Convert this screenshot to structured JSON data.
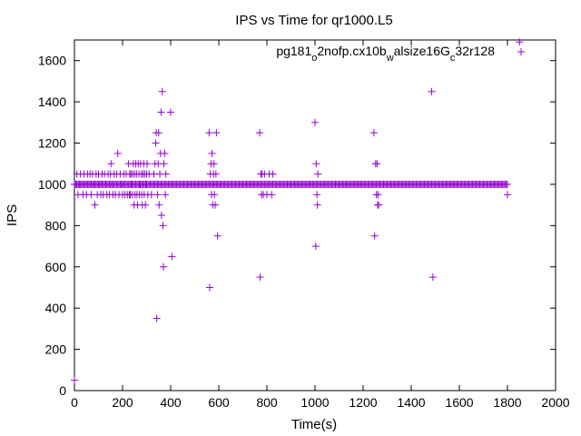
{
  "chart_data": {
    "type": "scatter",
    "title": "IPS vs Time for qr1000.L5",
    "xlabel": "Time(s)",
    "ylabel": "IPS",
    "xlim": [
      0,
      2000
    ],
    "ylim": [
      0,
      1700
    ],
    "xticks": [
      0,
      200,
      400,
      600,
      800,
      1000,
      1200,
      1400,
      1600,
      1800,
      2000
    ],
    "yticks": [
      0,
      200,
      400,
      600,
      800,
      1000,
      1200,
      1400,
      1600
    ],
    "grid": false,
    "legend_position": "top-right",
    "series": [
      {
        "name": "pg181_o2nofp.cx10b_walsize16G_c32r128",
        "name_parts": [
          {
            "text": "pg181",
            "sub": false
          },
          {
            "text": "o",
            "sub": true
          },
          {
            "text": "2nofp.cx10b",
            "sub": false
          },
          {
            "text": "w",
            "sub": true
          },
          {
            "text": "alsize16G",
            "sub": false
          },
          {
            "text": "c",
            "sub": true
          },
          {
            "text": "32r128",
            "sub": false
          }
        ],
        "color": "#9400d3",
        "marker": "plus",
        "dense_band": {
          "y": 1000,
          "x_start": 0,
          "x_end": 1800,
          "step": 5
        },
        "points": [
          [
            0,
            50
          ],
          [
            5,
            1000
          ],
          [
            10,
            1050
          ],
          [
            15,
            950
          ],
          [
            20,
            1000
          ],
          [
            25,
            1050
          ],
          [
            30,
            1000
          ],
          [
            35,
            950
          ],
          [
            40,
            1050
          ],
          [
            45,
            1000
          ],
          [
            50,
            950
          ],
          [
            55,
            1050
          ],
          [
            60,
            1000
          ],
          [
            65,
            1050
          ],
          [
            70,
            950
          ],
          [
            75,
            1050
          ],
          [
            80,
            1000
          ],
          [
            85,
            900
          ],
          [
            90,
            1050
          ],
          [
            95,
            950
          ],
          [
            100,
            1050
          ],
          [
            105,
            1000
          ],
          [
            110,
            950
          ],
          [
            115,
            1050
          ],
          [
            120,
            950
          ],
          [
            125,
            1050
          ],
          [
            130,
            1000
          ],
          [
            135,
            950
          ],
          [
            140,
            1050
          ],
          [
            145,
            950
          ],
          [
            150,
            1050
          ],
          [
            152,
            1100
          ],
          [
            155,
            1000
          ],
          [
            160,
            950
          ],
          [
            165,
            1050
          ],
          [
            170,
            950
          ],
          [
            175,
            1050
          ],
          [
            180,
            1150
          ],
          [
            185,
            950
          ],
          [
            190,
            1050
          ],
          [
            195,
            1000
          ],
          [
            200,
            950
          ],
          [
            205,
            1050
          ],
          [
            210,
            950
          ],
          [
            215,
            1050
          ],
          [
            220,
            950
          ],
          [
            225,
            1100
          ],
          [
            228,
            950
          ],
          [
            230,
            1050
          ],
          [
            232,
            950
          ],
          [
            235,
            1050
          ],
          [
            238,
            1000
          ],
          [
            240,
            950
          ],
          [
            242,
            1050
          ],
          [
            245,
            1100
          ],
          [
            248,
            900
          ],
          [
            250,
            1050
          ],
          [
            252,
            950
          ],
          [
            255,
            1100
          ],
          [
            258,
            1050
          ],
          [
            260,
            950
          ],
          [
            262,
            900
          ],
          [
            265,
            1100
          ],
          [
            268,
            1050
          ],
          [
            270,
            950
          ],
          [
            272,
            1000
          ],
          [
            275,
            1100
          ],
          [
            278,
            1050
          ],
          [
            280,
            950
          ],
          [
            282,
            900
          ],
          [
            285,
            1050
          ],
          [
            288,
            1100
          ],
          [
            290,
            950
          ],
          [
            292,
            1050
          ],
          [
            295,
            900
          ],
          [
            298,
            1000
          ],
          [
            300,
            1050
          ],
          [
            302,
            1100
          ],
          [
            305,
            950
          ],
          [
            310,
            1050
          ],
          [
            320,
            950
          ],
          [
            330,
            1050
          ],
          [
            335,
            1100
          ],
          [
            338,
            1200
          ],
          [
            340,
            1250
          ],
          [
            342,
            350
          ],
          [
            345,
            950
          ],
          [
            348,
            1100
          ],
          [
            350,
            1250
          ],
          [
            352,
            900
          ],
          [
            355,
            1050
          ],
          [
            358,
            1150
          ],
          [
            360,
            1350
          ],
          [
            362,
            850
          ],
          [
            365,
            1450
          ],
          [
            368,
            800
          ],
          [
            370,
            600
          ],
          [
            372,
            1100
          ],
          [
            375,
            1150
          ],
          [
            378,
            950
          ],
          [
            380,
            1050
          ],
          [
            400,
            1350
          ],
          [
            405,
            650
          ],
          [
            560,
            1250
          ],
          [
            562,
            500
          ],
          [
            565,
            1050
          ],
          [
            568,
            1100
          ],
          [
            570,
            950
          ],
          [
            572,
            1150
          ],
          [
            575,
            900
          ],
          [
            578,
            1050
          ],
          [
            580,
            1100
          ],
          [
            582,
            950
          ],
          [
            585,
            900
          ],
          [
            588,
            1050
          ],
          [
            590,
            1250
          ],
          [
            595,
            750
          ],
          [
            770,
            1250
          ],
          [
            772,
            550
          ],
          [
            775,
            1050
          ],
          [
            778,
            950
          ],
          [
            780,
            1050
          ],
          [
            785,
            950
          ],
          [
            790,
            1050
          ],
          [
            800,
            950
          ],
          [
            810,
            1050
          ],
          [
            820,
            950
          ],
          [
            825,
            1050
          ],
          [
            1000,
            1300
          ],
          [
            1003,
            700
          ],
          [
            1005,
            1100
          ],
          [
            1008,
            950
          ],
          [
            1010,
            900
          ],
          [
            1012,
            1050
          ],
          [
            1245,
            1250
          ],
          [
            1248,
            750
          ],
          [
            1252,
            1100
          ],
          [
            1255,
            950
          ],
          [
            1258,
            1100
          ],
          [
            1260,
            900
          ],
          [
            1262,
            950
          ],
          [
            1265,
            900
          ],
          [
            1485,
            1450
          ],
          [
            1490,
            550
          ],
          [
            1800,
            950
          ],
          [
            1850,
            1690
          ]
        ]
      }
    ]
  }
}
